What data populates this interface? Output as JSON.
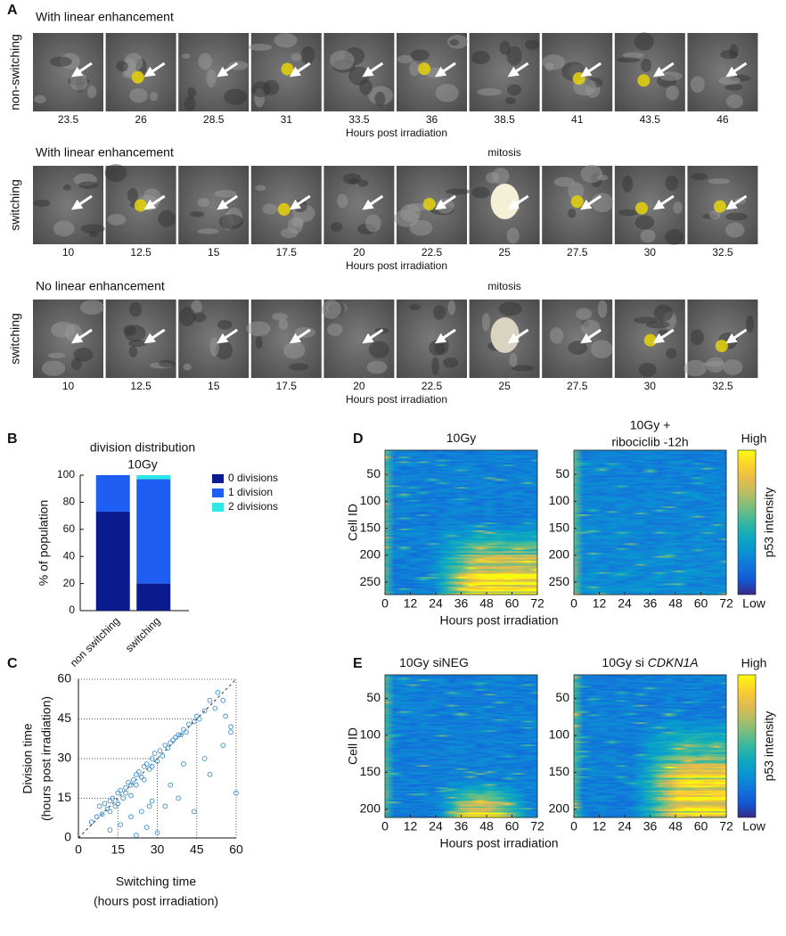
{
  "panel_a": {
    "label": "A",
    "rows": [
      {
        "title": "With linear enhancement",
        "side_label": "non-switching",
        "times": [
          23.5,
          26,
          28.5,
          31,
          33.5,
          36,
          38.5,
          41,
          43.5,
          46
        ],
        "xlabel": "Hours post irradiation"
      },
      {
        "title": "With linear enhancement",
        "side_label": "switching",
        "annotation": "mitosis",
        "times": [
          10,
          12.5,
          15,
          17.5,
          20,
          22.5,
          25,
          27.5,
          30,
          32.5
        ],
        "xlabel": "Hours post irradiation"
      },
      {
        "title": "No linear enhancement",
        "side_label": "switching",
        "annotation": "mitosis",
        "times": [
          10,
          12.5,
          15,
          17.5,
          20,
          22.5,
          25,
          27.5,
          30,
          32.5
        ],
        "xlabel": "Hours post irradiation"
      }
    ]
  },
  "chart_data": [
    {
      "type": "bar",
      "stacked": true,
      "panel_label": "B",
      "title": "division distribution",
      "subtitle": "10Gy",
      "categories": [
        "non switching",
        "switching"
      ],
      "series": [
        {
          "name": "0 divisions",
          "color": "#0b1a8c",
          "values": [
            73,
            20
          ]
        },
        {
          "name": "1 division",
          "color": "#1e5ef2",
          "values": [
            27,
            77
          ]
        },
        {
          "name": "2 divisions",
          "color": "#2ee8e8",
          "values": [
            0,
            3
          ]
        }
      ],
      "ylabel": "% of population",
      "ylim": [
        0,
        100
      ],
      "yticks": [
        0,
        20,
        40,
        60,
        80,
        100
      ]
    },
    {
      "type": "scatter",
      "panel_label": "C",
      "color": "#3a8fd0",
      "xlabel": [
        "Switching time",
        "(hours post irradiation)"
      ],
      "ylabel": [
        "Division time",
        "(hours post irradiation)"
      ],
      "xlim": [
        0,
        60
      ],
      "ylim": [
        0,
        60
      ],
      "xticks": [
        0,
        15,
        30,
        45,
        60
      ],
      "yticks": [
        0,
        15,
        30,
        45,
        60
      ],
      "x": [
        5,
        7,
        8,
        9,
        10,
        11,
        12,
        12,
        13,
        14,
        15,
        15,
        16,
        17,
        18,
        18,
        19,
        20,
        20,
        21,
        22,
        22,
        23,
        24,
        25,
        25,
        26,
        27,
        28,
        28,
        29,
        30,
        31,
        32,
        33,
        34,
        35,
        36,
        37,
        38,
        39,
        40,
        41,
        42,
        44,
        45,
        46,
        48,
        50,
        52,
        53,
        55,
        56,
        58,
        60,
        12,
        16,
        20,
        24,
        26,
        28,
        30,
        33,
        35,
        38,
        40,
        44,
        48,
        50,
        55,
        58,
        22,
        27
      ],
      "y": [
        6,
        8,
        12,
        9,
        13,
        11,
        14,
        10,
        15,
        12,
        17,
        13,
        18,
        15,
        19,
        17,
        21,
        20,
        16,
        22,
        24,
        20,
        25,
        23,
        27,
        22,
        28,
        26,
        30,
        27,
        32,
        29,
        33,
        31,
        35,
        34,
        36,
        37,
        38,
        39,
        39,
        41,
        40,
        43,
        44,
        46,
        45,
        48,
        52,
        49,
        55,
        52,
        46,
        42,
        17,
        3,
        5,
        8,
        10,
        4,
        14,
        2,
        12,
        20,
        15,
        28,
        10,
        30,
        24,
        35,
        40,
        1,
        12
      ]
    },
    {
      "type": "heatmap",
      "panel_label": "D",
      "title": "10Gy",
      "ylabel": "Cell ID",
      "xlabel": "Hours post irradiation",
      "xlim": [
        0,
        72
      ],
      "xticks": [
        0,
        12,
        24,
        36,
        48,
        60,
        72
      ],
      "ylim": [
        5,
        273
      ],
      "yticks": [
        50,
        100,
        150,
        200,
        250
      ]
    },
    {
      "type": "heatmap",
      "title": [
        "10Gy +",
        "ribociclib -12h"
      ],
      "xlim": [
        0,
        72
      ],
      "xticks": [
        0,
        12,
        24,
        36,
        48,
        60,
        72
      ],
      "ylim": [
        5,
        273
      ],
      "yticks": [
        50,
        100,
        150,
        200,
        250
      ],
      "colorbar": {
        "high": "High",
        "low": "Low",
        "label": "p53 intensity"
      }
    },
    {
      "type": "heatmap",
      "panel_label": "E",
      "title": "10Gy siNEG",
      "ylabel": "Cell ID",
      "xlabel": "Hours post irradiation",
      "xlim": [
        0,
        72
      ],
      "xticks": [
        0,
        12,
        24,
        36,
        48,
        60,
        72
      ],
      "ylim": [
        18,
        211
      ],
      "yticks": [
        50,
        100,
        150,
        200
      ]
    },
    {
      "type": "heatmap",
      "title": "10Gy si",
      "title_italic": "CDKN1A",
      "xlim": [
        0,
        72
      ],
      "xticks": [
        0,
        12,
        24,
        36,
        48,
        60,
        72
      ],
      "ylim": [
        18,
        211
      ],
      "yticks": [
        50,
        100,
        150,
        200
      ],
      "colorbar": {
        "high": "High",
        "low": "Low",
        "label": "p53 intensity"
      }
    }
  ]
}
